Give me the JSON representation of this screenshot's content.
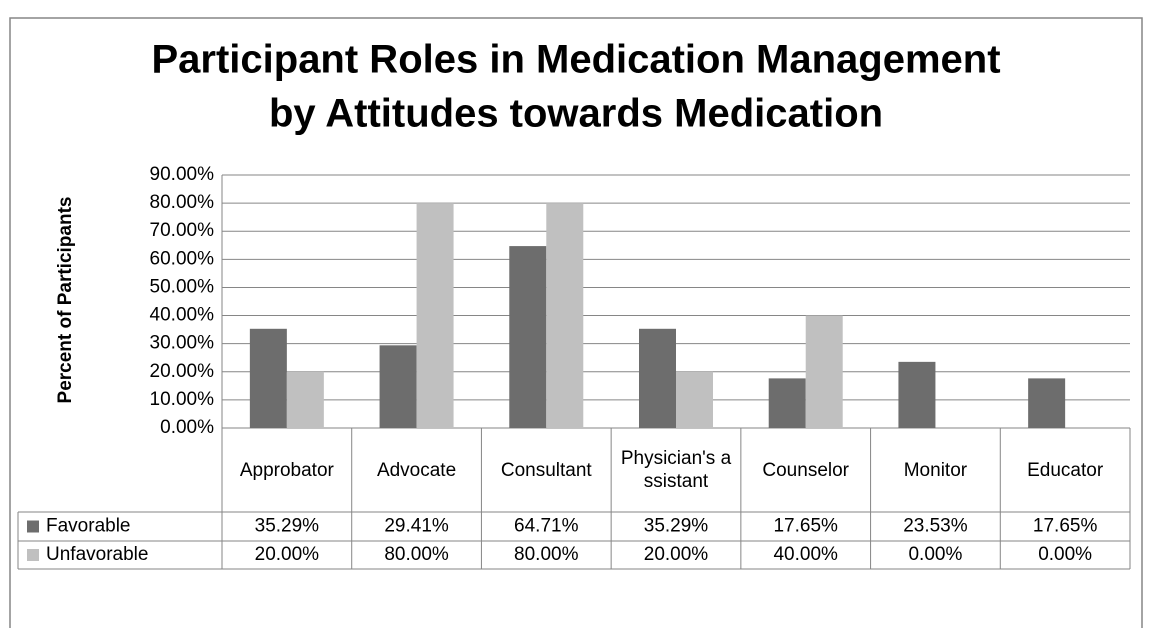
{
  "chart_data": {
    "type": "bar",
    "title_lines": [
      "Participant Roles in Medication Management",
      "by Attitudes towards Medication"
    ],
    "y_label": "Percent of Participants",
    "categories": [
      "Approbator",
      "Advocate",
      "Consultant",
      "Physician's assistant",
      "Counselor",
      "Monitor",
      "Educator"
    ],
    "series": [
      {
        "name": "Favorable",
        "color": "#6d6d6d",
        "values": [
          35.29,
          29.41,
          64.71,
          35.29,
          17.65,
          23.53,
          17.65
        ],
        "value_labels": [
          "35.29%",
          "29.41%",
          "64.71%",
          "35.29%",
          "17.65%",
          "23.53%",
          "17.65%"
        ]
      },
      {
        "name": "Unfavorable",
        "color": "#c0c0c0",
        "values": [
          20,
          80,
          80,
          20,
          40,
          0,
          0
        ],
        "value_labels": [
          "20.00%",
          "80.00%",
          "80.00%",
          "20.00%",
          "40.00%",
          "0.00%",
          "0.00%"
        ]
      }
    ],
    "ylim": [
      0,
      90
    ],
    "yticks": [
      {
        "value": 0,
        "label": "0.00%"
      },
      {
        "value": 10,
        "label": "10.00%"
      },
      {
        "value": 20,
        "label": "20.00%"
      },
      {
        "value": 30,
        "label": "30.00%"
      },
      {
        "value": 40,
        "label": "40.00%"
      },
      {
        "value": 50,
        "label": "50.00%"
      },
      {
        "value": 60,
        "label": "60.00%"
      },
      {
        "value": 70,
        "label": "70.00%"
      },
      {
        "value": 80,
        "label": "80.00%"
      },
      {
        "value": 90,
        "label": "90.00%"
      }
    ],
    "grid": true
  }
}
